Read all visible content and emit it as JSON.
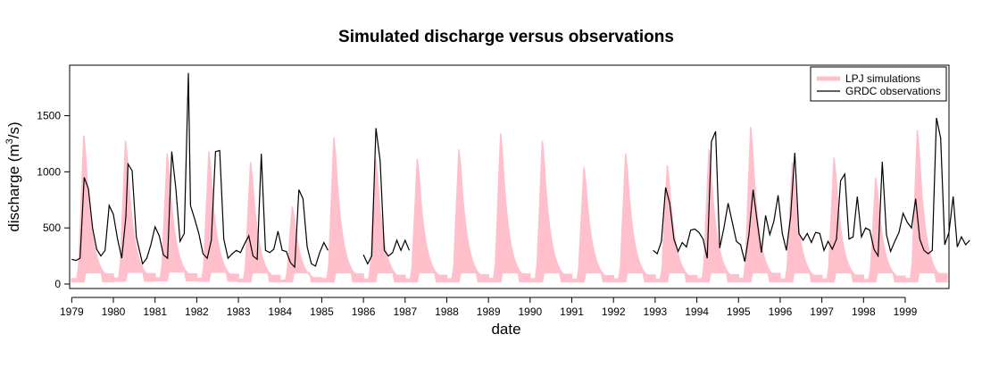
{
  "chart_data": {
    "type": "line",
    "title": "Simulated discharge versus observations",
    "xlabel": "date",
    "ylabel": "discharge (m",
    "ylabel_sup": "3",
    "ylabel_tail": "/s)",
    "xlim": [
      1978.95,
      2000.05
    ],
    "ylim": [
      -40,
      1950
    ],
    "x_ticks": [
      "1979",
      "1980",
      "1981",
      "1982",
      "1983",
      "1984",
      "1985",
      "1986",
      "1987",
      "1988",
      "1989",
      "1990",
      "1991",
      "1992",
      "1993",
      "1994",
      "1995",
      "1996",
      "1997",
      "1998",
      "1999"
    ],
    "y_ticks": [
      0,
      500,
      1000,
      1500
    ],
    "legend": {
      "position": "top-right",
      "entries": [
        "LPJ simulations",
        "GRDC observations"
      ]
    },
    "colors": {
      "simulations": "#ffc0cb",
      "observations": "#000000"
    },
    "series": [
      {
        "name": "LPJ simulations",
        "type": "band",
        "annual_peaks": [
          {
            "year": 1979,
            "peak": 1400,
            "base": 20
          },
          {
            "year": 1980,
            "peak": 1350,
            "base": 25
          },
          {
            "year": 1981,
            "peak": 1230,
            "base": 30
          },
          {
            "year": 1982,
            "peak": 1250,
            "base": 25
          },
          {
            "year": 1983,
            "peak": 1150,
            "base": 20
          },
          {
            "year": 1984,
            "peak": 730,
            "base": 20
          },
          {
            "year": 1985,
            "peak": 1380,
            "base": 20
          },
          {
            "year": 1986,
            "peak": 1180,
            "base": 20
          },
          {
            "year": 1987,
            "peak": 1180,
            "base": 20
          },
          {
            "year": 1988,
            "peak": 1270,
            "base": 20
          },
          {
            "year": 1989,
            "peak": 1420,
            "base": 20
          },
          {
            "year": 1990,
            "peak": 1350,
            "base": 20
          },
          {
            "year": 1991,
            "peak": 1100,
            "base": 20
          },
          {
            "year": 1992,
            "peak": 1230,
            "base": 20
          },
          {
            "year": 1993,
            "peak": 1120,
            "base": 20
          },
          {
            "year": 1994,
            "peak": 1270,
            "base": 20
          },
          {
            "year": 1995,
            "peak": 1480,
            "base": 20
          },
          {
            "year": 1996,
            "peak": 1150,
            "base": 20
          },
          {
            "year": 1997,
            "peak": 1190,
            "base": 20
          },
          {
            "year": 1998,
            "peak": 1000,
            "base": 20
          },
          {
            "year": 1999,
            "peak": 1450,
            "base": 20
          }
        ]
      },
      {
        "name": "GRDC observations",
        "type": "line",
        "segments": [
          [
            [
              1979.0,
              220
            ],
            [
              1979.1,
              210
            ],
            [
              1979.2,
              230
            ],
            [
              1979.3,
              950
            ],
            [
              1979.4,
              850
            ],
            [
              1979.5,
              500
            ],
            [
              1979.6,
              310
            ],
            [
              1979.7,
              250
            ],
            [
              1979.8,
              300
            ],
            [
              1979.9,
              700
            ],
            [
              1980.0,
              620
            ],
            [
              1980.1,
              400
            ],
            [
              1980.2,
              230
            ],
            [
              1980.3,
              600
            ],
            [
              1980.35,
              1070
            ],
            [
              1980.45,
              1010
            ],
            [
              1980.55,
              420
            ],
            [
              1980.7,
              180
            ],
            [
              1980.8,
              230
            ],
            [
              1980.9,
              350
            ],
            [
              1981.0,
              510
            ],
            [
              1981.1,
              430
            ],
            [
              1981.2,
              260
            ],
            [
              1981.3,
              230
            ],
            [
              1981.4,
              1180
            ],
            [
              1981.5,
              850
            ],
            [
              1981.6,
              380
            ],
            [
              1981.7,
              450
            ],
            [
              1981.8,
              1880
            ],
            [
              1981.85,
              700
            ],
            [
              1981.95,
              580
            ],
            [
              1982.05,
              450
            ],
            [
              1982.15,
              270
            ],
            [
              1982.25,
              230
            ],
            [
              1982.35,
              390
            ],
            [
              1982.45,
              1180
            ],
            [
              1982.55,
              1190
            ],
            [
              1982.65,
              400
            ],
            [
              1982.75,
              230
            ],
            [
              1982.85,
              270
            ],
            [
              1982.95,
              300
            ],
            [
              1983.05,
              280
            ],
            [
              1983.15,
              360
            ],
            [
              1983.25,
              430
            ],
            [
              1983.35,
              250
            ],
            [
              1983.45,
              220
            ],
            [
              1983.55,
              1160
            ],
            [
              1983.65,
              300
            ],
            [
              1983.75,
              280
            ],
            [
              1983.85,
              310
            ],
            [
              1983.95,
              470
            ],
            [
              1984.05,
              300
            ],
            [
              1984.15,
              290
            ],
            [
              1984.25,
              190
            ],
            [
              1984.35,
              150
            ],
            [
              1984.45,
              840
            ],
            [
              1984.55,
              760
            ],
            [
              1984.65,
              330
            ],
            [
              1984.75,
              180
            ],
            [
              1984.85,
              160
            ],
            [
              1984.95,
              280
            ],
            [
              1985.05,
              370
            ],
            [
              1985.15,
              300
            ]
          ],
          [
            [
              1986.0,
              260
            ],
            [
              1986.1,
              180
            ],
            [
              1986.2,
              250
            ],
            [
              1986.3,
              1390
            ],
            [
              1986.4,
              1100
            ],
            [
              1986.5,
              300
            ],
            [
              1986.6,
              250
            ],
            [
              1986.7,
              280
            ],
            [
              1986.8,
              390
            ],
            [
              1986.9,
              300
            ],
            [
              1987.0,
              390
            ],
            [
              1987.1,
              300
            ]
          ],
          [
            [
              1992.95,
              300
            ],
            [
              1993.05,
              270
            ],
            [
              1993.15,
              380
            ],
            [
              1993.25,
              860
            ],
            [
              1993.35,
              720
            ],
            [
              1993.45,
              400
            ],
            [
              1993.55,
              290
            ],
            [
              1993.65,
              370
            ],
            [
              1993.75,
              330
            ],
            [
              1993.85,
              480
            ],
            [
              1993.95,
              490
            ],
            [
              1994.05,
              460
            ],
            [
              1994.15,
              400
            ],
            [
              1994.25,
              230
            ],
            [
              1994.35,
              1270
            ],
            [
              1994.45,
              1360
            ],
            [
              1994.55,
              320
            ],
            [
              1994.65,
              500
            ],
            [
              1994.75,
              720
            ],
            [
              1994.85,
              550
            ],
            [
              1994.95,
              380
            ],
            [
              1995.05,
              350
            ],
            [
              1995.15,
              200
            ],
            [
              1995.25,
              440
            ],
            [
              1995.35,
              840
            ],
            [
              1995.45,
              550
            ],
            [
              1995.55,
              280
            ],
            [
              1995.65,
              610
            ],
            [
              1995.75,
              440
            ],
            [
              1995.85,
              560
            ],
            [
              1995.95,
              790
            ],
            [
              1996.05,
              450
            ],
            [
              1996.15,
              300
            ],
            [
              1996.25,
              600
            ],
            [
              1996.35,
              1170
            ],
            [
              1996.45,
              450
            ],
            [
              1996.55,
              390
            ],
            [
              1996.65,
              450
            ],
            [
              1996.75,
              370
            ],
            [
              1996.85,
              460
            ],
            [
              1996.95,
              450
            ],
            [
              1997.05,
              300
            ],
            [
              1997.15,
              380
            ],
            [
              1997.25,
              310
            ],
            [
              1997.35,
              400
            ],
            [
              1997.45,
              920
            ],
            [
              1997.55,
              980
            ],
            [
              1997.65,
              400
            ],
            [
              1997.75,
              420
            ],
            [
              1997.85,
              780
            ],
            [
              1997.95,
              420
            ],
            [
              1998.05,
              500
            ],
            [
              1998.15,
              480
            ],
            [
              1998.25,
              310
            ],
            [
              1998.35,
              250
            ],
            [
              1998.45,
              1090
            ],
            [
              1998.55,
              440
            ],
            [
              1998.65,
              290
            ],
            [
              1998.75,
              380
            ],
            [
              1998.85,
              460
            ],
            [
              1998.95,
              630
            ],
            [
              1999.05,
              550
            ],
            [
              1999.15,
              500
            ],
            [
              1999.25,
              760
            ],
            [
              1999.35,
              400
            ],
            [
              1999.45,
              300
            ],
            [
              1999.55,
              270
            ],
            [
              1999.65,
              300
            ],
            [
              1999.75,
              1480
            ],
            [
              1999.85,
              1300
            ],
            [
              1999.95,
              350
            ],
            [
              2000.05,
              460
            ],
            [
              2000.15,
              780
            ],
            [
              2000.25,
              330
            ],
            [
              2000.35,
              420
            ],
            [
              2000.45,
              350
            ],
            [
              2000.55,
              390
            ]
          ]
        ]
      }
    ]
  }
}
